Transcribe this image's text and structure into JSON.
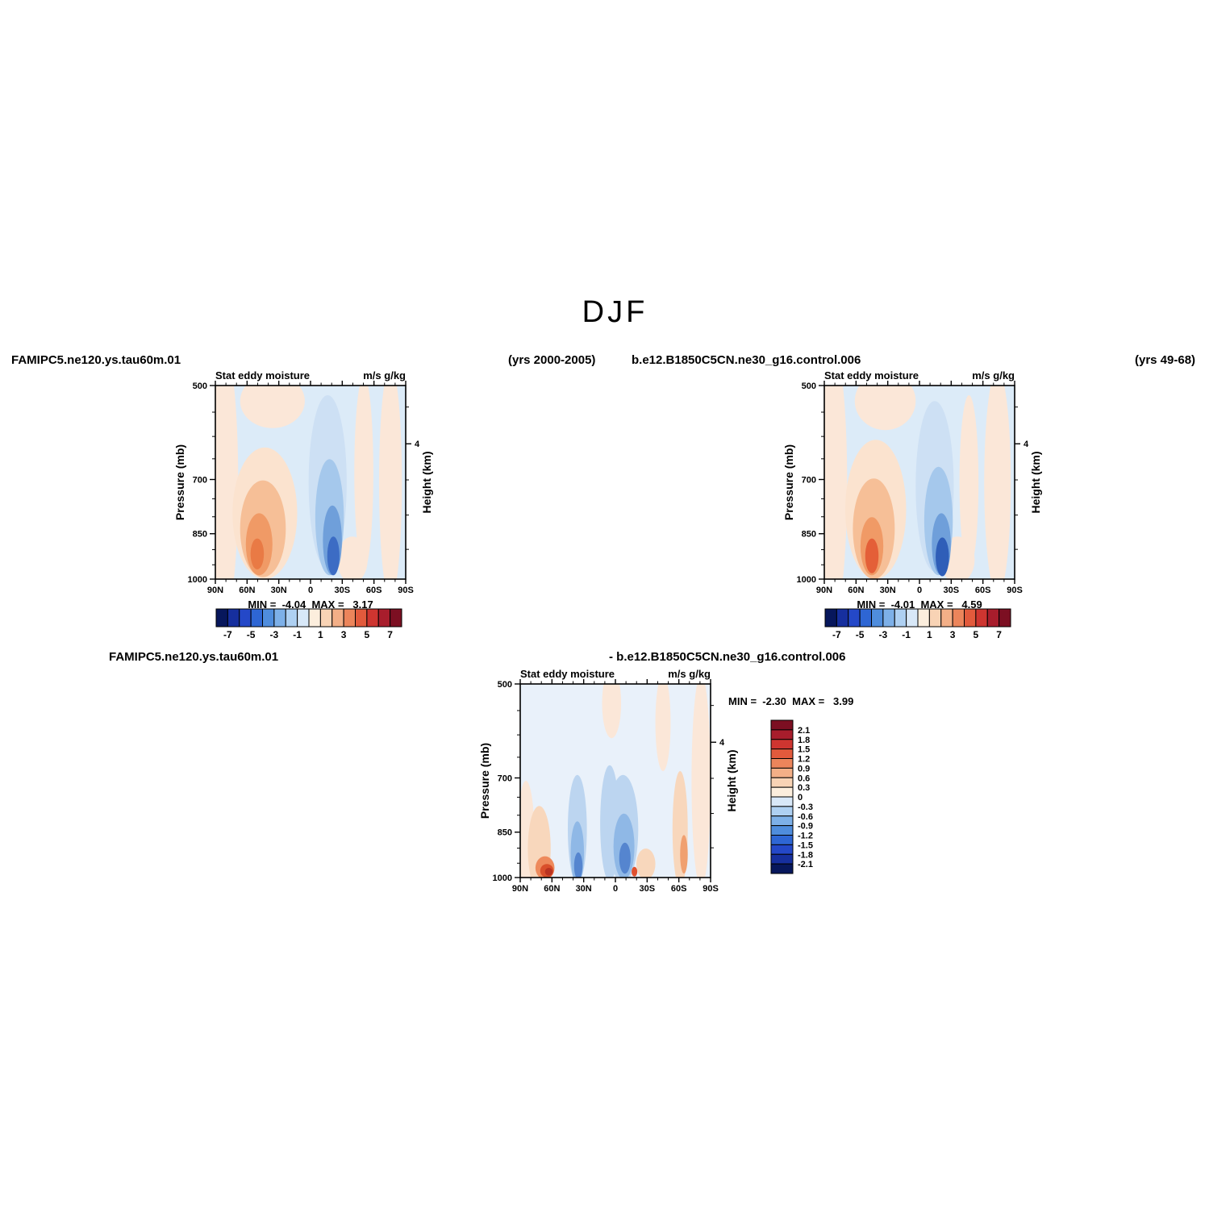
{
  "page": {
    "title": "DJF"
  },
  "header": {
    "case_left": "FAMIPC5.ne120.ys.tau60m.01",
    "years_left": "(yrs 2000-2005)",
    "case_right": "b.e12.B1850C5CN.ne30_g16.control.006",
    "years_right": "(yrs 49-68)"
  },
  "diff_header": {
    "case": "FAMIPC5.ne120.ys.tau60m.01",
    "minus_control": "- b.e12.B1850C5CN.ne30_g16.control.006"
  },
  "chart_data": {
    "type": "heatmap",
    "season": "DJF",
    "field": "Stat eddy moisture",
    "units": "m/s g/kg",
    "x_axis": {
      "ticks": [
        "90N",
        "60N",
        "30N",
        "0",
        "30S",
        "60S",
        "90S"
      ],
      "minor_step_deg": 10,
      "range_deg": [
        90,
        -90
      ]
    },
    "y_axis": {
      "label": "Pressure (mb)",
      "scale": "log",
      "range": [
        500,
        1000
      ],
      "ticks": [
        "500",
        "700",
        "850",
        "1000"
      ],
      "tick_values": [
        500,
        700,
        850,
        1000
      ],
      "minor_ticks": [
        550,
        600,
        650,
        750,
        800,
        900,
        950
      ]
    },
    "y2_axis": {
      "label": "Height (km)",
      "ticks": [
        {
          "km": 4,
          "p": 616
        }
      ],
      "minor_ticks": [
        {
          "p": 899
        },
        {
          "p": 795
        },
        {
          "p": 701
        },
        {
          "p": 540
        }
      ]
    },
    "panels": [
      {
        "id": "case",
        "name": "FAMIPC5.ne120.ys.tau60m.01",
        "years": "(yrs 2000-2005)",
        "min": -4.04,
        "max": 3.17,
        "minmax_label": "MIN =  -4.04  MAX =   3.17",
        "colorbar": "main"
      },
      {
        "id": "control",
        "name": "b.e12.B1850C5CN.ne30_g16.control.006",
        "years": "(yrs 49-68)",
        "min": -4.01,
        "max": 4.59,
        "minmax_label": "MIN =  -4.01  MAX =   4.59",
        "colorbar": "main"
      },
      {
        "id": "diff",
        "name": "FAMIPC5.ne120.ys.tau60m.01 - b.e12.B1850C5CN.ne30_g16.control.006",
        "min": -2.3,
        "max": 3.99,
        "minmax_label": "MIN =  -2.30  MAX =   3.99",
        "colorbar": "diff"
      }
    ],
    "colorbars": {
      "main": {
        "orientation": "horizontal",
        "labels": [
          "-7",
          "-5",
          "-3",
          "-1",
          "1",
          "3",
          "5",
          "7"
        ],
        "colors": [
          "#07175c",
          "#162f9e",
          "#2448c8",
          "#2e66d4",
          "#4f8ddd",
          "#7db0e8",
          "#aed0f2",
          "#d8e8f8",
          "#fceedd",
          "#f8d3b5",
          "#f3af87",
          "#ec855b",
          "#e25a3c",
          "#ce3530",
          "#a81d2c",
          "#7c0f22"
        ]
      },
      "diff": {
        "orientation": "vertical",
        "labels": [
          "2.1",
          "1.8",
          "1.5",
          "1.2",
          "0.9",
          "0.6",
          "0.3",
          "0",
          "-0.3",
          "-0.6",
          "-0.9",
          "-1.2",
          "-1.5",
          "-1.8",
          "-2.1"
        ],
        "colors": [
          "#7c0f22",
          "#a81d2c",
          "#ce3530",
          "#e25a3c",
          "#ec855b",
          "#f3af87",
          "#f8d3b5",
          "#fceedd",
          "#d8e8f8",
          "#aed0f2",
          "#7db0e8",
          "#4f8ddd",
          "#2e66d4",
          "#2448c8",
          "#162f9e",
          "#07175c"
        ]
      }
    },
    "field_blobs": {
      "case": {
        "base": "#dcebf8",
        "blobs": [
          {
            "x": 0.045,
            "y": 0.5,
            "rx": 0.075,
            "ry": 0.7,
            "c": "#fbe7d8"
          },
          {
            "x": 0.3,
            "y": 0.08,
            "rx": 0.17,
            "ry": 0.14,
            "c": "#fbe7d8"
          },
          {
            "x": 0.92,
            "y": 0.5,
            "rx": 0.06,
            "ry": 0.6,
            "c": "#fbe7d8"
          },
          {
            "x": 0.78,
            "y": 0.45,
            "rx": 0.05,
            "ry": 0.5,
            "c": "#fbe7d8"
          },
          {
            "x": 0.72,
            "y": 0.9,
            "rx": 0.08,
            "ry": 0.12,
            "c": "#fbe7d8"
          },
          {
            "x": 0.26,
            "y": 0.66,
            "rx": 0.17,
            "ry": 0.34,
            "c": "#fbe3cf"
          },
          {
            "x": 0.25,
            "y": 0.74,
            "rx": 0.12,
            "ry": 0.25,
            "c": "#f6bf97"
          },
          {
            "x": 0.23,
            "y": 0.82,
            "rx": 0.07,
            "ry": 0.16,
            "c": "#f09a66"
          },
          {
            "x": 0.22,
            "y": 0.87,
            "rx": 0.035,
            "ry": 0.08,
            "c": "#e97a45"
          },
          {
            "x": 0.59,
            "y": 0.5,
            "rx": 0.1,
            "ry": 0.45,
            "c": "#cde0f4"
          },
          {
            "x": 0.6,
            "y": 0.68,
            "rx": 0.075,
            "ry": 0.3,
            "c": "#a5c8ec"
          },
          {
            "x": 0.615,
            "y": 0.8,
            "rx": 0.05,
            "ry": 0.18,
            "c": "#6f9fda"
          },
          {
            "x": 0.62,
            "y": 0.88,
            "rx": 0.032,
            "ry": 0.1,
            "c": "#3c6cc4"
          }
        ]
      },
      "control": {
        "base": "#dcebf8",
        "blobs": [
          {
            "x": 0.045,
            "y": 0.5,
            "rx": 0.075,
            "ry": 0.7,
            "c": "#fbe7d8"
          },
          {
            "x": 0.32,
            "y": 0.08,
            "rx": 0.16,
            "ry": 0.15,
            "c": "#fbe7d8"
          },
          {
            "x": 0.91,
            "y": 0.5,
            "rx": 0.07,
            "ry": 0.58,
            "c": "#fbe7d8"
          },
          {
            "x": 0.76,
            "y": 0.5,
            "rx": 0.05,
            "ry": 0.45,
            "c": "#fbe7d8"
          },
          {
            "x": 0.7,
            "y": 0.9,
            "rx": 0.09,
            "ry": 0.12,
            "c": "#fbe7d8"
          },
          {
            "x": 0.27,
            "y": 0.64,
            "rx": 0.16,
            "ry": 0.36,
            "c": "#fbe3cf"
          },
          {
            "x": 0.26,
            "y": 0.74,
            "rx": 0.11,
            "ry": 0.26,
            "c": "#f6bf97"
          },
          {
            "x": 0.25,
            "y": 0.83,
            "rx": 0.06,
            "ry": 0.15,
            "c": "#f09a66"
          },
          {
            "x": 0.25,
            "y": 0.88,
            "rx": 0.035,
            "ry": 0.09,
            "c": "#e45f38"
          },
          {
            "x": 0.58,
            "y": 0.52,
            "rx": 0.1,
            "ry": 0.44,
            "c": "#cde0f4"
          },
          {
            "x": 0.6,
            "y": 0.7,
            "rx": 0.075,
            "ry": 0.28,
            "c": "#a5c8ec"
          },
          {
            "x": 0.615,
            "y": 0.82,
            "rx": 0.05,
            "ry": 0.16,
            "c": "#6f9fda"
          },
          {
            "x": 0.62,
            "y": 0.885,
            "rx": 0.035,
            "ry": 0.1,
            "c": "#2f5eb8"
          }
        ]
      },
      "diff": {
        "base": "#e9f1fa",
        "blobs": [
          {
            "x": 0.03,
            "y": 0.8,
            "rx": 0.045,
            "ry": 0.3,
            "c": "#fbe7d8"
          },
          {
            "x": 0.95,
            "y": 0.5,
            "rx": 0.05,
            "ry": 0.55,
            "c": "#fbe7d8"
          },
          {
            "x": 0.48,
            "y": 0.1,
            "rx": 0.05,
            "ry": 0.18,
            "c": "#fbe7d8"
          },
          {
            "x": 0.75,
            "y": 0.2,
            "rx": 0.04,
            "ry": 0.25,
            "c": "#fbe7d8"
          },
          {
            "x": 0.1,
            "y": 0.85,
            "rx": 0.06,
            "ry": 0.22,
            "c": "#f8d7bc"
          },
          {
            "x": 0.13,
            "y": 0.95,
            "rx": 0.05,
            "ry": 0.06,
            "c": "#ee8a5c"
          },
          {
            "x": 0.14,
            "y": 0.965,
            "rx": 0.035,
            "ry": 0.035,
            "c": "#d94f2b"
          },
          {
            "x": 0.15,
            "y": 0.97,
            "rx": 0.02,
            "ry": 0.02,
            "c": "#b93321"
          },
          {
            "x": 0.3,
            "y": 0.75,
            "rx": 0.05,
            "ry": 0.28,
            "c": "#bcd5f0"
          },
          {
            "x": 0.3,
            "y": 0.87,
            "rx": 0.035,
            "ry": 0.16,
            "c": "#8fb8e6"
          },
          {
            "x": 0.305,
            "y": 0.94,
            "rx": 0.022,
            "ry": 0.07,
            "c": "#5585cf"
          },
          {
            "x": 0.47,
            "y": 0.72,
            "rx": 0.05,
            "ry": 0.3,
            "c": "#bcd5f0"
          },
          {
            "x": 0.54,
            "y": 0.75,
            "rx": 0.08,
            "ry": 0.28,
            "c": "#bcd5f0"
          },
          {
            "x": 0.545,
            "y": 0.84,
            "rx": 0.055,
            "ry": 0.17,
            "c": "#8fb8e6"
          },
          {
            "x": 0.55,
            "y": 0.9,
            "rx": 0.03,
            "ry": 0.08,
            "c": "#5585cf"
          },
          {
            "x": 0.84,
            "y": 0.75,
            "rx": 0.04,
            "ry": 0.3,
            "c": "#f8d7bc"
          },
          {
            "x": 0.86,
            "y": 0.88,
            "rx": 0.02,
            "ry": 0.1,
            "c": "#f0a070"
          },
          {
            "x": 0.66,
            "y": 0.93,
            "rx": 0.05,
            "ry": 0.08,
            "c": "#f8d7bc"
          },
          {
            "x": 0.6,
            "y": 0.97,
            "rx": 0.015,
            "ry": 0.025,
            "c": "#e0512f"
          }
        ]
      }
    }
  }
}
